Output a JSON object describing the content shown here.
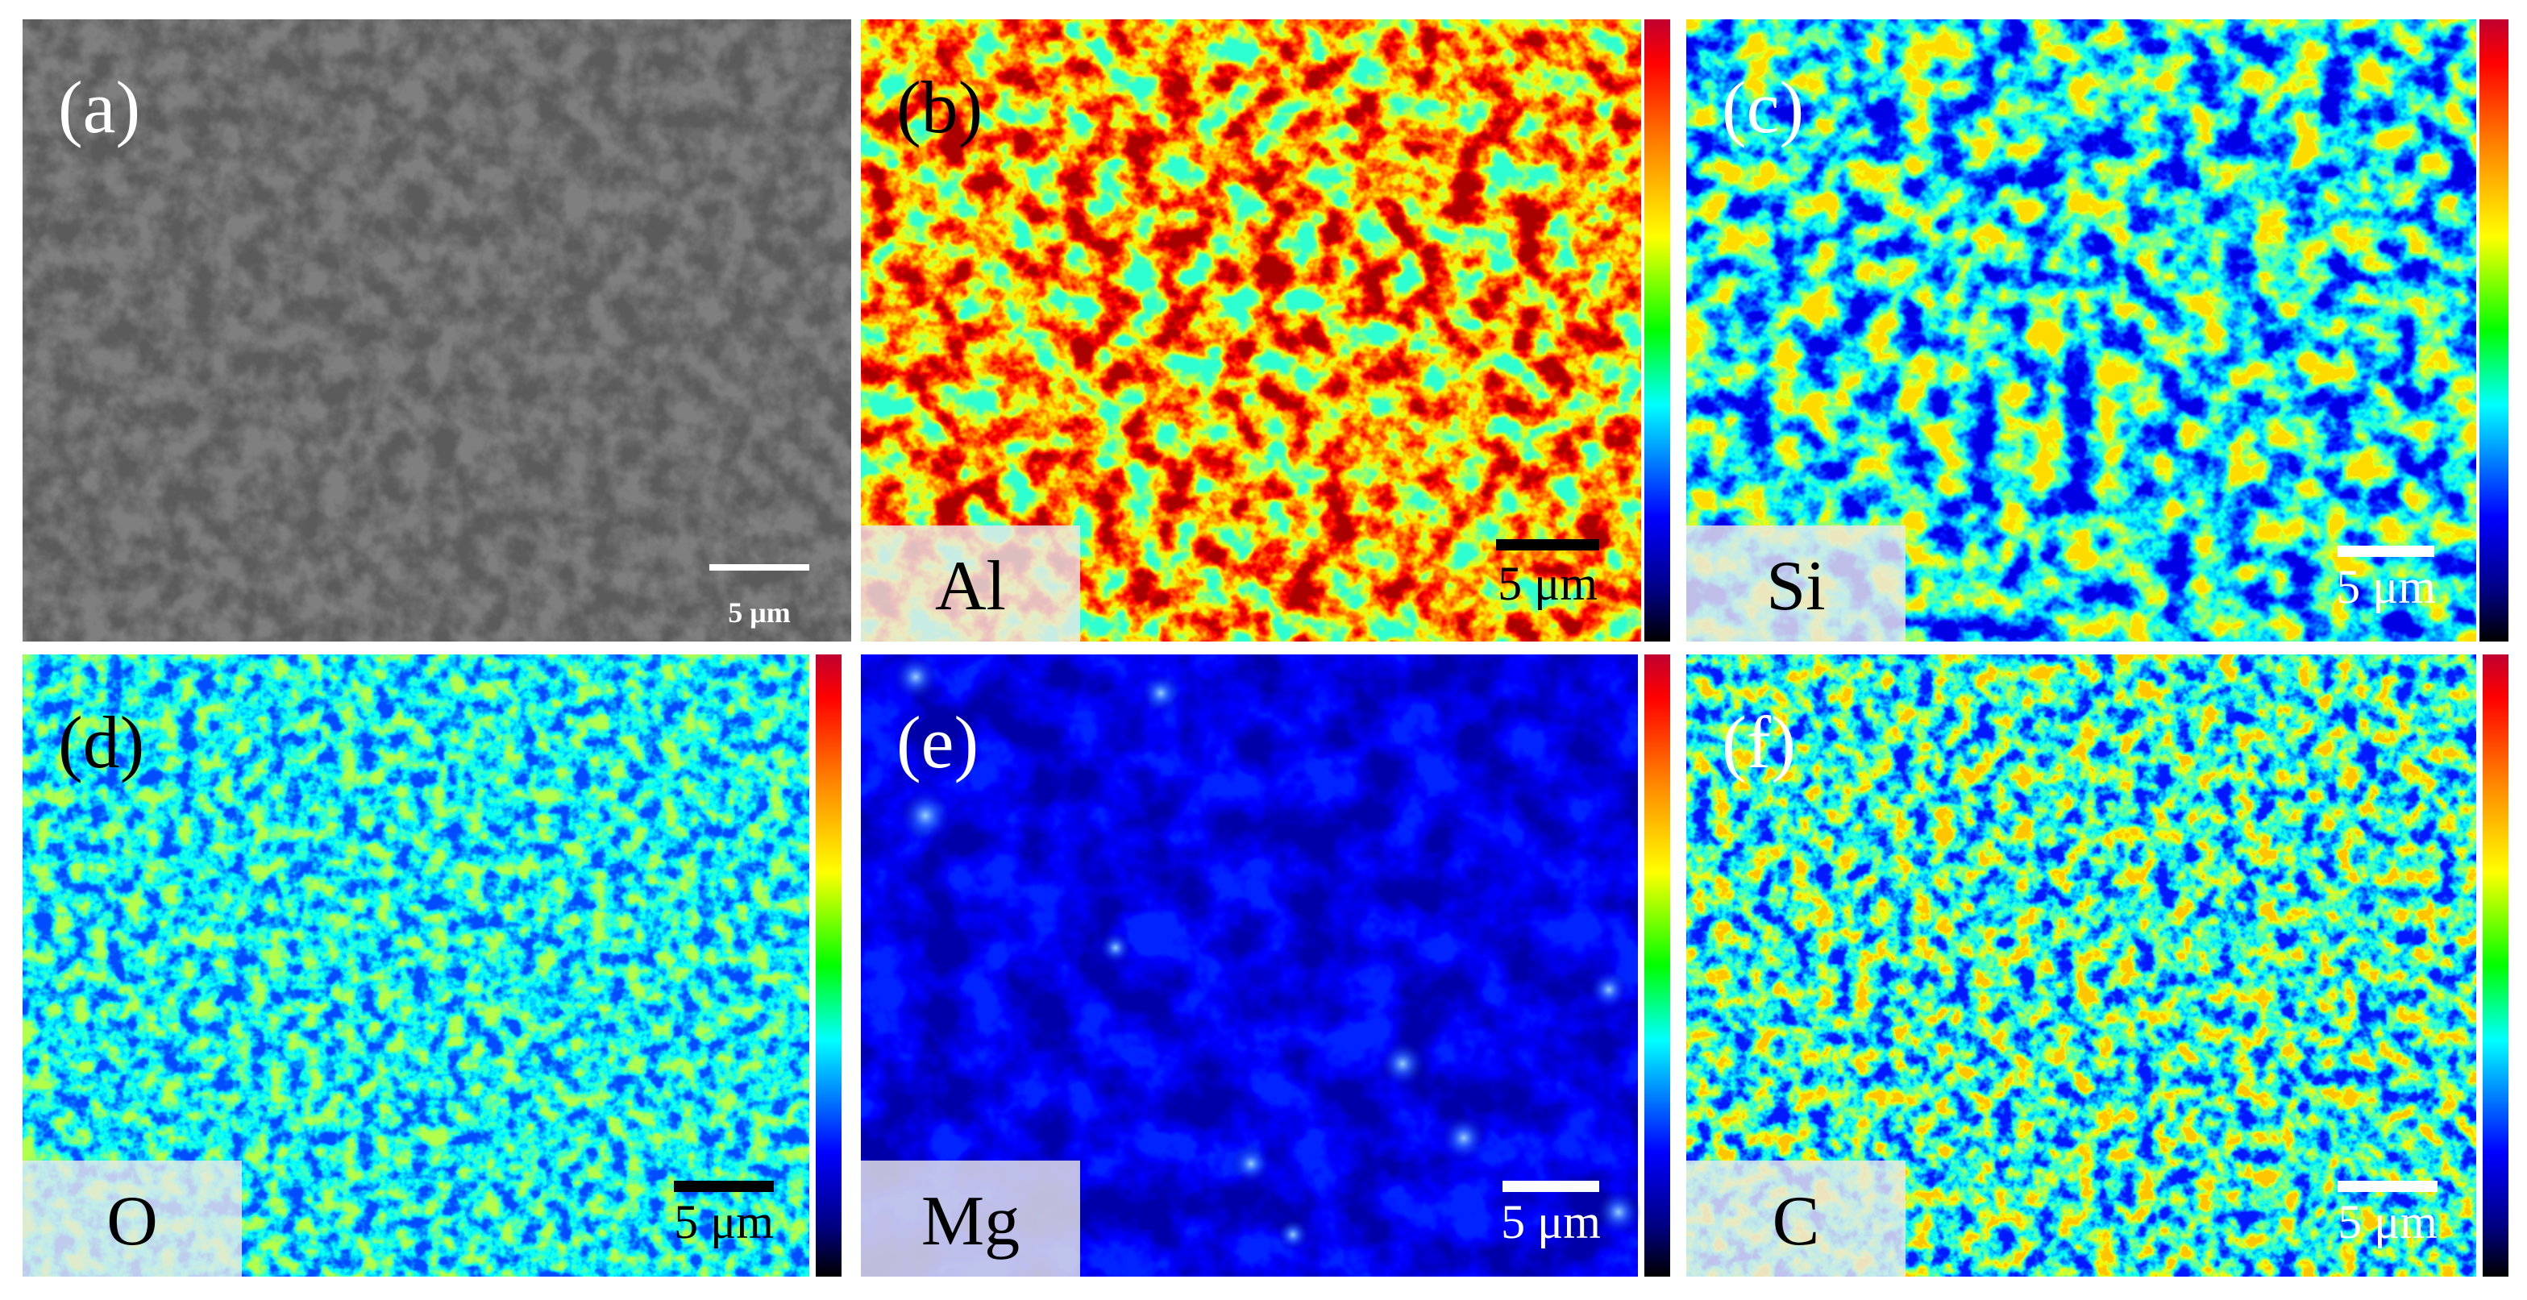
{
  "panels": [
    {
      "label": "(a)",
      "scale": "5 μm"
    },
    {
      "label": "(b)",
      "element": "Al",
      "scale": "5 μm"
    },
    {
      "label": "(c)",
      "element": "Si",
      "scale": "5 μm"
    },
    {
      "label": "(d)",
      "element": "O",
      "scale": "5 μm"
    },
    {
      "label": "(e)",
      "element": "Mg",
      "scale": "5 μm"
    },
    {
      "label": "(f)",
      "element": "C",
      "scale": "5 μm"
    }
  ]
}
